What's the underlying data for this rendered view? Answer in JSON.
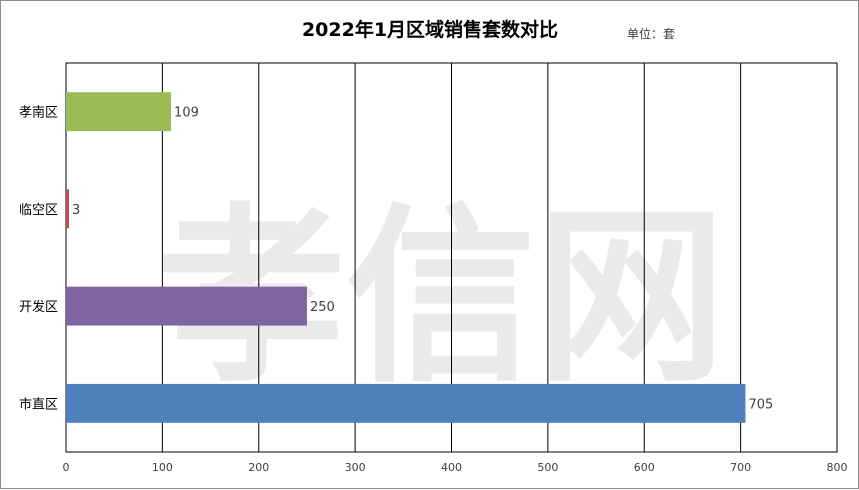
{
  "chart_data": {
    "type": "bar",
    "orientation": "horizontal",
    "title": "2022年1月区域销售套数对比",
    "unit_label": "单位：套",
    "watermark": "孝信网",
    "categories": [
      "孝南区",
      "临空区",
      "开发区",
      "市直区"
    ],
    "values": [
      109,
      3,
      250,
      705
    ],
    "bar_colors": [
      "#9bbb59",
      "#c0504d",
      "#8064a2",
      "#4f81bd"
    ],
    "xlim": [
      0,
      800
    ],
    "xticks": [
      0,
      100,
      200,
      300,
      400,
      500,
      600,
      700,
      800
    ],
    "grid": true,
    "legend": "none",
    "data_labels": true
  }
}
